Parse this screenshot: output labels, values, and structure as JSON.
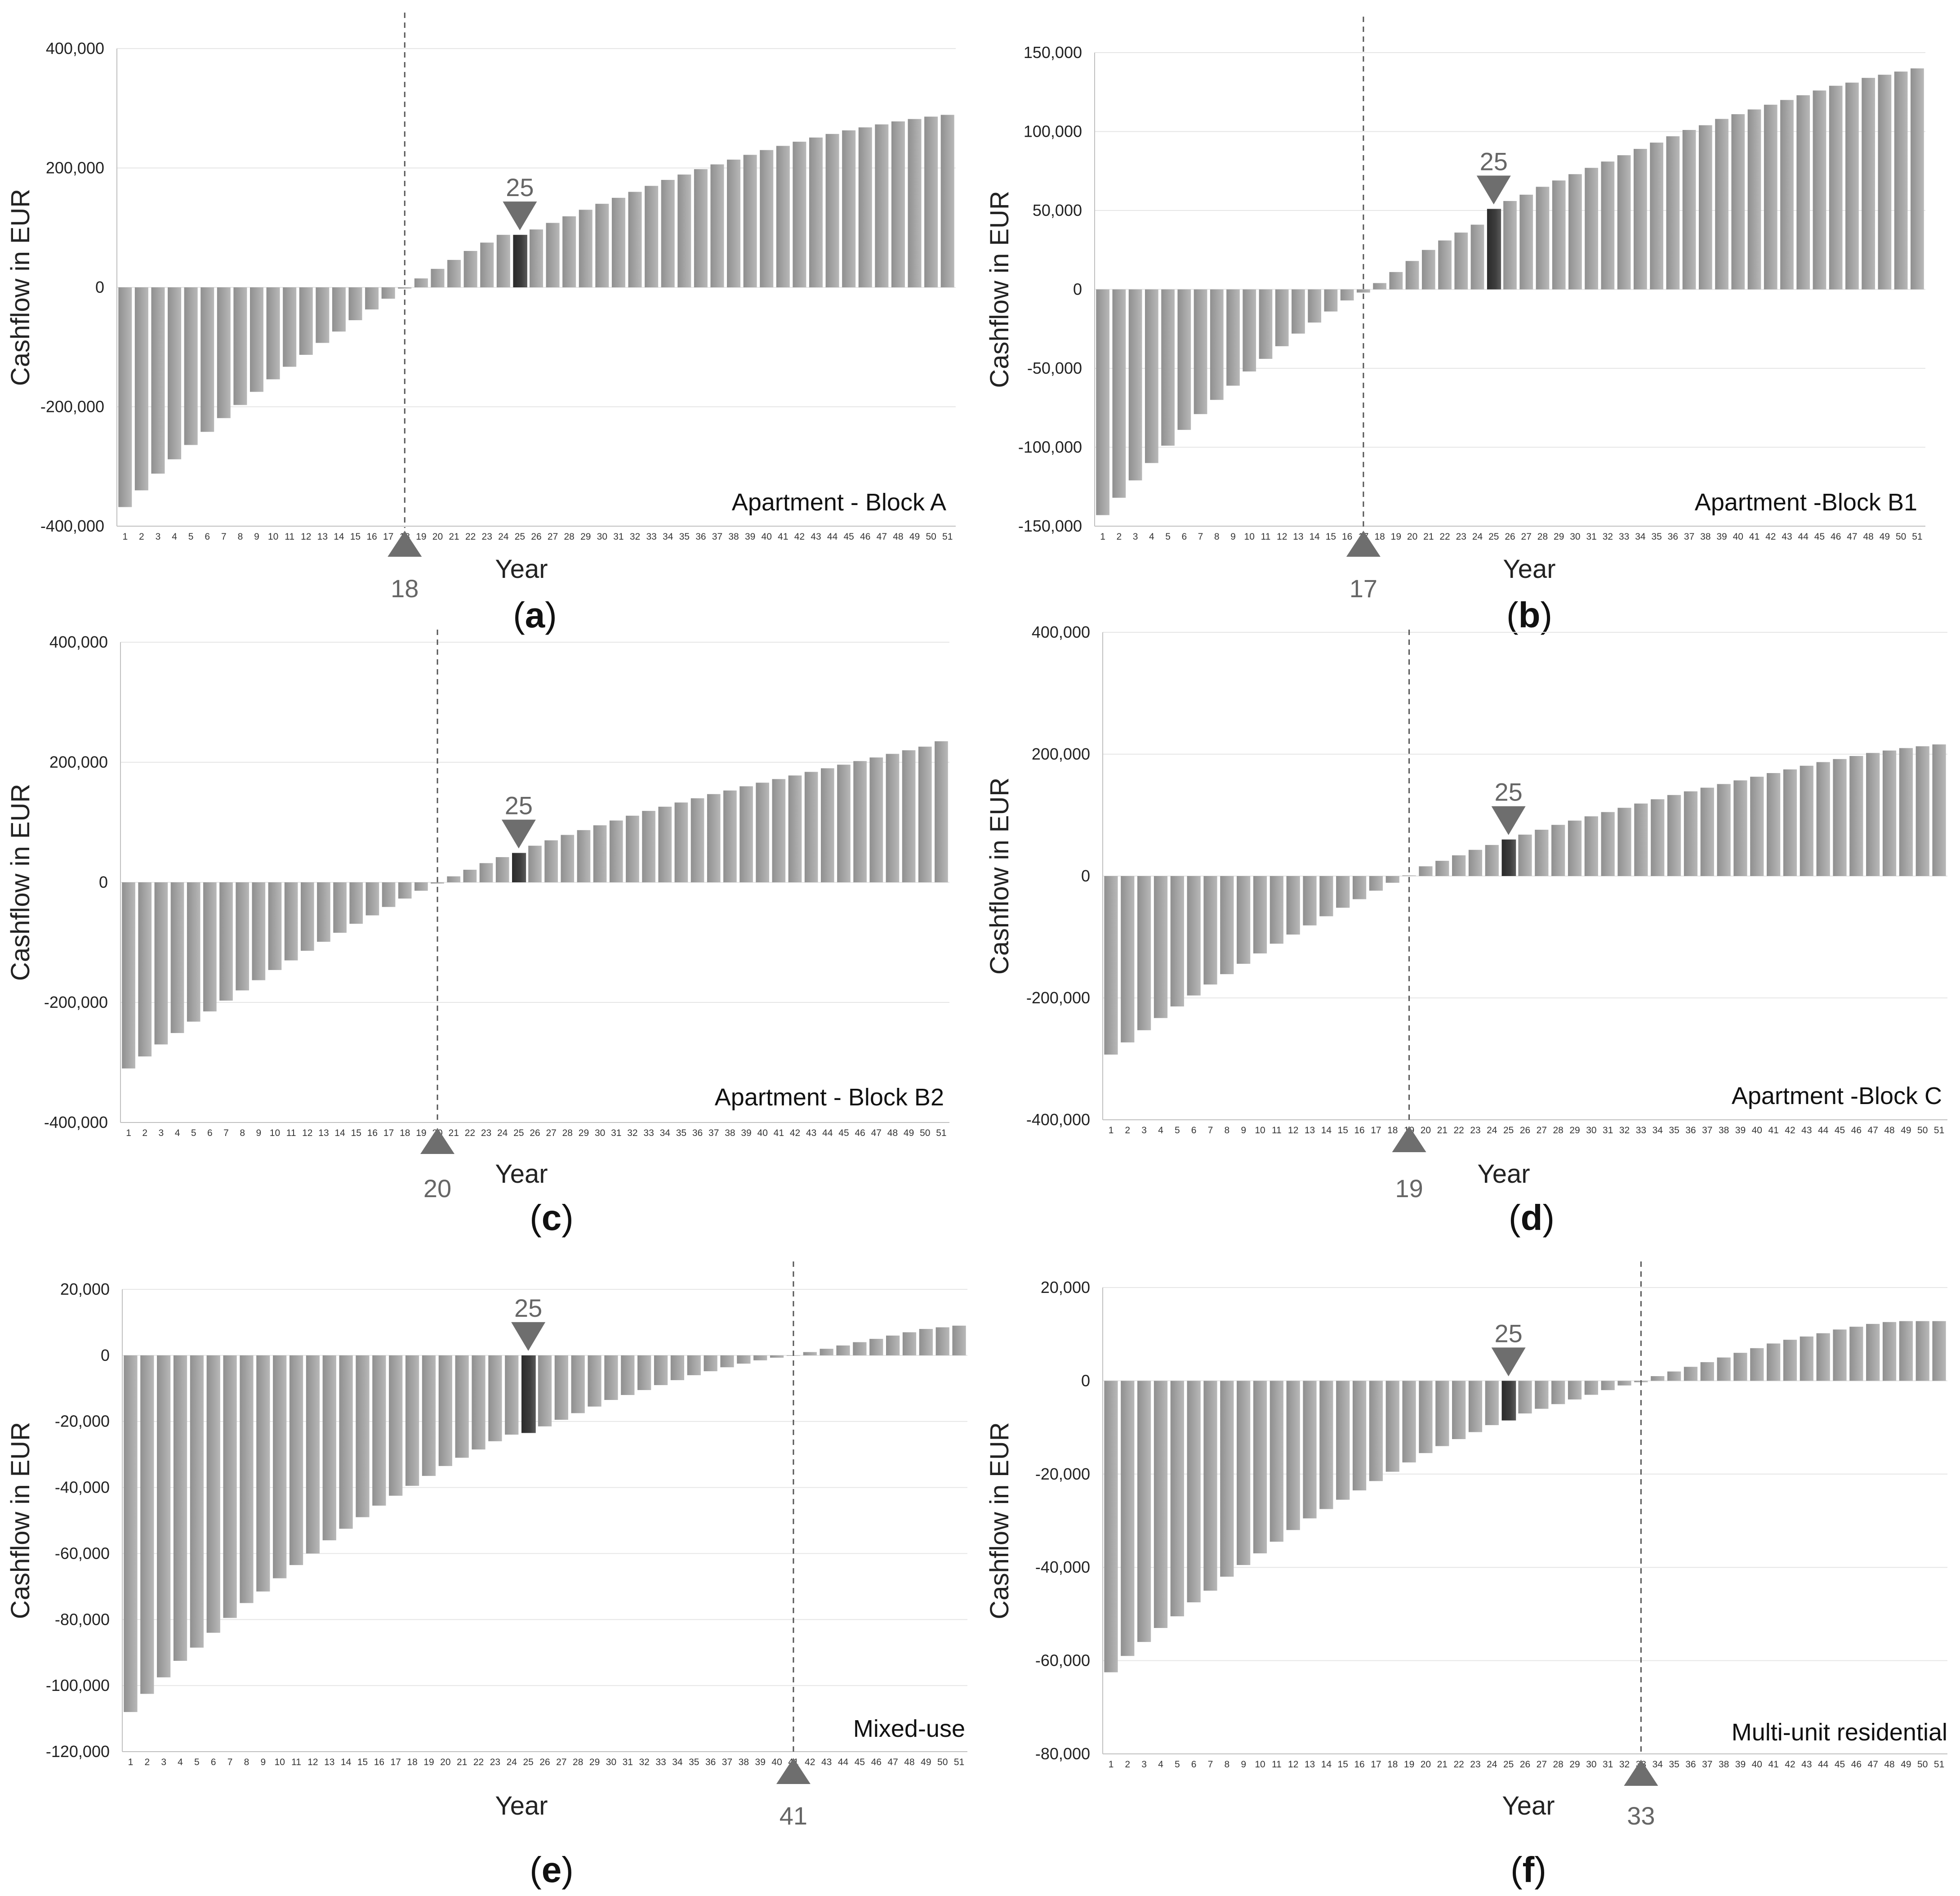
{
  "colors": {
    "bar": "#a6a6a6",
    "bar_highlight": "#3d3d3d",
    "marker": "#6e6e6e"
  },
  "chart_data": [
    {
      "type": "bar",
      "panel_label": "a",
      "title": "Apartment - Block A",
      "xlabel": "Year",
      "ylabel": "Cashflow in EUR",
      "ylim": [
        -400000,
        400000
      ],
      "yticks": [
        400000,
        200000,
        0,
        -200000,
        -400000
      ],
      "ytick_labels": [
        "400,000",
        "200,000",
        "0",
        "-200,000",
        "-400,000"
      ],
      "categories": [
        "1",
        "2",
        "3",
        "4",
        "5",
        "6",
        "7",
        "8",
        "9",
        "10",
        "11",
        "12",
        "13",
        "14",
        "15",
        "16",
        "17",
        "18",
        "19",
        "20",
        "21",
        "22",
        "23",
        "24",
        "25",
        "26",
        "27",
        "28",
        "29",
        "30",
        "31",
        "32",
        "33",
        "34",
        "35",
        "36",
        "37",
        "38",
        "39",
        "40",
        "41",
        "42",
        "43",
        "44",
        "45",
        "46",
        "47",
        "48",
        "49",
        "50",
        "51"
      ],
      "values": [
        -368000,
        -340000,
        -312000,
        -288000,
        -264000,
        -242000,
        -219000,
        -197000,
        -175000,
        -154000,
        -133000,
        -113000,
        -93000,
        -74000,
        -55000,
        -37000,
        -19000,
        -2000,
        15000,
        31000,
        46000,
        61000,
        75000,
        88000,
        88000,
        97000,
        108000,
        119000,
        130000,
        140000,
        150000,
        160000,
        170000,
        180000,
        189000,
        198000,
        206000,
        214000,
        222000,
        230000,
        237000,
        244000,
        251000,
        257000,
        263000,
        268000,
        273000,
        278000,
        282000,
        286000,
        289000
      ],
      "highlight_year": "25",
      "marker_top_label": "25",
      "breakeven_year": "18",
      "breakeven_label": "18"
    },
    {
      "type": "bar",
      "panel_label": "b",
      "title": "Apartment -Block B1",
      "xlabel": "Year",
      "ylabel": "Cashflow in EUR",
      "ylim": [
        -150000,
        150000
      ],
      "yticks": [
        150000,
        100000,
        50000,
        0,
        -50000,
        -100000,
        -150000
      ],
      "ytick_labels": [
        "150,000",
        "100,000",
        "50,000",
        "0",
        "-50,000",
        "-100,000",
        "-150,000"
      ],
      "categories": [
        "1",
        "2",
        "3",
        "4",
        "5",
        "6",
        "7",
        "8",
        "9",
        "10",
        "11",
        "12",
        "13",
        "14",
        "15",
        "16",
        "17",
        "18",
        "19",
        "20",
        "21",
        "22",
        "23",
        "24",
        "25",
        "26",
        "27",
        "28",
        "29",
        "30",
        "31",
        "32",
        "33",
        "34",
        "35",
        "36",
        "37",
        "38",
        "39",
        "40",
        "41",
        "42",
        "43",
        "44",
        "45",
        "46",
        "47",
        "48",
        "49",
        "50",
        "51"
      ],
      "values": [
        -143000,
        -132000,
        -121000,
        -110000,
        -99000,
        -89000,
        -79000,
        -70000,
        -61000,
        -52000,
        -44000,
        -36000,
        -28000,
        -21000,
        -14000,
        -7000,
        -2000,
        4000,
        11000,
        18000,
        25000,
        31000,
        36000,
        41000,
        51000,
        56000,
        60000,
        65000,
        69000,
        73000,
        77000,
        81000,
        85000,
        89000,
        93000,
        97000,
        101000,
        104000,
        108000,
        111000,
        114000,
        117000,
        120000,
        123000,
        126000,
        129000,
        131000,
        134000,
        136000,
        138000,
        140000
      ],
      "highlight_year": "25",
      "marker_top_label": "25",
      "breakeven_year": "17",
      "breakeven_label": "17"
    },
    {
      "type": "bar",
      "panel_label": "c",
      "title": "Apartment - Block B2",
      "xlabel": "Year",
      "ylabel": "Cashflow in EUR",
      "ylim": [
        -400000,
        400000
      ],
      "yticks": [
        400000,
        200000,
        0,
        -200000,
        -400000
      ],
      "ytick_labels": [
        "400,000",
        "200,000",
        "0",
        "-200,000",
        "-400,000"
      ],
      "categories": [
        "1",
        "2",
        "3",
        "4",
        "5",
        "6",
        "7",
        "8",
        "9",
        "10",
        "11",
        "12",
        "13",
        "14",
        "15",
        "16",
        "17",
        "18",
        "19",
        "20",
        "21",
        "22",
        "23",
        "24",
        "25",
        "26",
        "27",
        "28",
        "29",
        "30",
        "31",
        "32",
        "33",
        "34",
        "35",
        "36",
        "37",
        "38",
        "39",
        "40",
        "41",
        "42",
        "43",
        "44",
        "45",
        "46",
        "47",
        "48",
        "49",
        "50",
        "51"
      ],
      "values": [
        -310000,
        -290000,
        -270000,
        -251000,
        -232000,
        -215000,
        -197000,
        -180000,
        -163000,
        -146000,
        -130000,
        -114000,
        -99000,
        -84000,
        -69000,
        -55000,
        -41000,
        -27000,
        -14000,
        -2000,
        10000,
        21000,
        32000,
        42000,
        49000,
        61000,
        70000,
        79000,
        87000,
        95000,
        103000,
        111000,
        119000,
        126000,
        133000,
        140000,
        147000,
        153000,
        160000,
        166000,
        172000,
        178000,
        184000,
        190000,
        196000,
        202000,
        208000,
        214000,
        220000,
        226000,
        235000
      ],
      "highlight_year": "25",
      "marker_top_label": "25",
      "breakeven_year": "20",
      "breakeven_label": "20"
    },
    {
      "type": "bar",
      "panel_label": "d",
      "title": "Apartment -Block C",
      "xlabel": "Year",
      "ylabel": "Cashflow in EUR",
      "ylim": [
        -400000,
        400000
      ],
      "yticks": [
        400000,
        200000,
        0,
        -200000,
        -400000
      ],
      "ytick_labels": [
        "400,000",
        "200,000",
        "0",
        "-200,000",
        "-400,000"
      ],
      "categories": [
        "1",
        "2",
        "3",
        "4",
        "5",
        "6",
        "7",
        "8",
        "9",
        "10",
        "11",
        "12",
        "13",
        "14",
        "15",
        "16",
        "17",
        "18",
        "19",
        "20",
        "21",
        "22",
        "23",
        "24",
        "25",
        "26",
        "27",
        "28",
        "29",
        "30",
        "31",
        "32",
        "33",
        "34",
        "35",
        "36",
        "37",
        "38",
        "39",
        "40",
        "41",
        "42",
        "43",
        "44",
        "45",
        "46",
        "47",
        "48",
        "49",
        "50",
        "51"
      ],
      "values": [
        -293000,
        -273000,
        -253000,
        -233000,
        -214000,
        -196000,
        -178000,
        -161000,
        -144000,
        -127000,
        -111000,
        -96000,
        -81000,
        -66000,
        -52000,
        -38000,
        -24000,
        -11000,
        1000,
        16000,
        25000,
        34000,
        43000,
        51000,
        60000,
        68000,
        76000,
        84000,
        91000,
        98000,
        105000,
        112000,
        119000,
        126000,
        133000,
        139000,
        145000,
        151000,
        157000,
        163000,
        169000,
        175000,
        181000,
        187000,
        192000,
        197000,
        202000,
        206000,
        210000,
        213000,
        216000
      ],
      "highlight_year": "25",
      "marker_top_label": "25",
      "breakeven_year": "19",
      "breakeven_label": "19"
    },
    {
      "type": "bar",
      "panel_label": "e",
      "title": "Mixed-use",
      "xlabel": "Year",
      "ylabel": "Cashflow in EUR",
      "ylim": [
        -120000,
        20000
      ],
      "yticks": [
        20000,
        0,
        -20000,
        -40000,
        -60000,
        -80000,
        -100000,
        -120000
      ],
      "ytick_labels": [
        "20,000",
        "0",
        "-20,000",
        "-40,000",
        "-60,000",
        "-80,000",
        "-100,000",
        "-120,000"
      ],
      "categories": [
        "1",
        "2",
        "3",
        "4",
        "5",
        "6",
        "7",
        "8",
        "9",
        "10",
        "11",
        "12",
        "13",
        "14",
        "15",
        "16",
        "17",
        "18",
        "19",
        "20",
        "21",
        "22",
        "23",
        "24",
        "25",
        "26",
        "27",
        "28",
        "29",
        "30",
        "31",
        "32",
        "33",
        "34",
        "35",
        "36",
        "37",
        "38",
        "39",
        "40",
        "41",
        "42",
        "43",
        "44",
        "45",
        "46",
        "47",
        "48",
        "49",
        "50",
        "51"
      ],
      "values": [
        -108000,
        -102500,
        -97500,
        -92500,
        -88500,
        -84000,
        -79500,
        -75000,
        -71500,
        -67500,
        -63500,
        -60000,
        -56000,
        -52500,
        -49000,
        -45500,
        -42500,
        -39500,
        -36500,
        -33500,
        -31000,
        -28500,
        -26000,
        -24000,
        -23500,
        -21500,
        -19500,
        -17500,
        -15500,
        -13500,
        -12000,
        -10500,
        -9000,
        -7500,
        -6000,
        -4800,
        -3600,
        -2500,
        -1500,
        -700,
        0,
        1000,
        2000,
        3000,
        4000,
        5000,
        6000,
        7000,
        8000,
        8500,
        9000
      ],
      "highlight_year": "25",
      "marker_top_label": "25",
      "breakeven_year": "41",
      "breakeven_label": "41"
    },
    {
      "type": "bar",
      "panel_label": "f",
      "title": "Multi-unit residential",
      "xlabel": "Year",
      "ylabel": "Cashflow in EUR",
      "ylim": [
        -80000,
        20000
      ],
      "yticks": [
        20000,
        0,
        -20000,
        -40000,
        -60000,
        -80000
      ],
      "ytick_labels": [
        "20,000",
        "0",
        "-20,000",
        "-40,000",
        "-60,000",
        "-80,000"
      ],
      "categories": [
        "1",
        "2",
        "3",
        "4",
        "5",
        "6",
        "7",
        "8",
        "9",
        "10",
        "11",
        "12",
        "13",
        "14",
        "15",
        "16",
        "17",
        "18",
        "19",
        "20",
        "21",
        "22",
        "23",
        "24",
        "25",
        "26",
        "27",
        "28",
        "29",
        "30",
        "31",
        "32",
        "33",
        "34",
        "35",
        "36",
        "37",
        "38",
        "39",
        "40",
        "41",
        "42",
        "43",
        "44",
        "45",
        "46",
        "47",
        "48",
        "49",
        "50",
        "51"
      ],
      "values": [
        -62500,
        -59000,
        -56000,
        -53000,
        -50500,
        -47500,
        -45000,
        -42000,
        -39500,
        -37000,
        -34500,
        -32000,
        -29500,
        -27500,
        -25500,
        -23500,
        -21500,
        -19500,
        -17500,
        -15500,
        -14000,
        -12500,
        -11000,
        -9500,
        -8500,
        -7000,
        -6000,
        -5000,
        -4000,
        -3000,
        -2000,
        -1000,
        -300,
        1000,
        2000,
        3000,
        4000,
        5000,
        6000,
        7000,
        8000,
        8800,
        9500,
        10200,
        11000,
        11600,
        12200,
        12600,
        12800,
        12800,
        12800
      ],
      "highlight_year": "25",
      "marker_top_label": "25",
      "breakeven_year": "33",
      "breakeven_label": "33"
    }
  ]
}
